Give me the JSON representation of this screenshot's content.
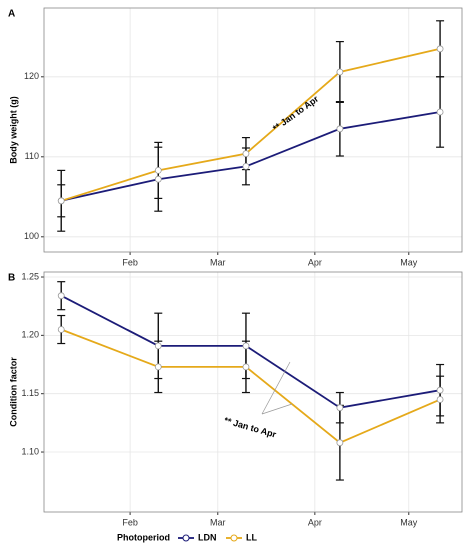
{
  "chart_data": [
    {
      "type": "line",
      "panel_label": "A",
      "ylabel": "Body weight (g)",
      "x": [
        10,
        41,
        69,
        99,
        131
      ],
      "xlim": [
        4.5,
        138
      ],
      "xticks": [
        {
          "value": 32,
          "label": "Feb"
        },
        {
          "value": 60,
          "label": "Mar"
        },
        {
          "value": 91,
          "label": "Apr"
        },
        {
          "value": 121,
          "label": "May"
        }
      ],
      "ylim": [
        98.1,
        128.6
      ],
      "yticks": [
        100,
        110,
        120
      ],
      "grid": true,
      "series": [
        {
          "color": "#1c1c78",
          "values": [
            104.5,
            107.2,
            108.8,
            113.5,
            115.6
          ],
          "errors": [
            2,
            4,
            2.3,
            3.4,
            4.4
          ]
        },
        {
          "color": "#e5a91a",
          "values": [
            104.5,
            108.3,
            110.4,
            120.6,
            123.5
          ],
          "errors": [
            3.8,
            3.5,
            2,
            3.8,
            3.5
          ]
        }
      ],
      "annotation": "** Jan to Apr"
    },
    {
      "type": "line",
      "panel_label": "B",
      "ylabel": "Condition factor",
      "x": [
        10,
        41,
        69,
        99,
        131
      ],
      "xlim": [
        4.5,
        138
      ],
      "xticks": [
        {
          "value": 32,
          "label": "Feb"
        },
        {
          "value": 60,
          "label": "Mar"
        },
        {
          "value": 91,
          "label": "Apr"
        },
        {
          "value": 121,
          "label": "May"
        }
      ],
      "ylim": [
        1.0486,
        1.2543
      ],
      "yticks": [
        1.1,
        1.15,
        1.2,
        1.25
      ],
      "grid": true,
      "series": [
        {
          "name": "LDN",
          "color": "#1c1c78",
          "values": [
            1.234,
            1.191,
            1.191,
            1.138,
            1.153
          ],
          "errors": [
            0.012,
            0.028,
            0.028,
            0.013,
            0.022
          ]
        },
        {
          "name": "LL",
          "color": "#e5a91a",
          "values": [
            1.205,
            1.173,
            1.173,
            1.108,
            1.145
          ],
          "errors": [
            0.012,
            0.022,
            0.022,
            0.032,
            0.02
          ]
        }
      ],
      "annotation": "** Jan to Apr",
      "legend_title": "Photoperiod"
    }
  ]
}
